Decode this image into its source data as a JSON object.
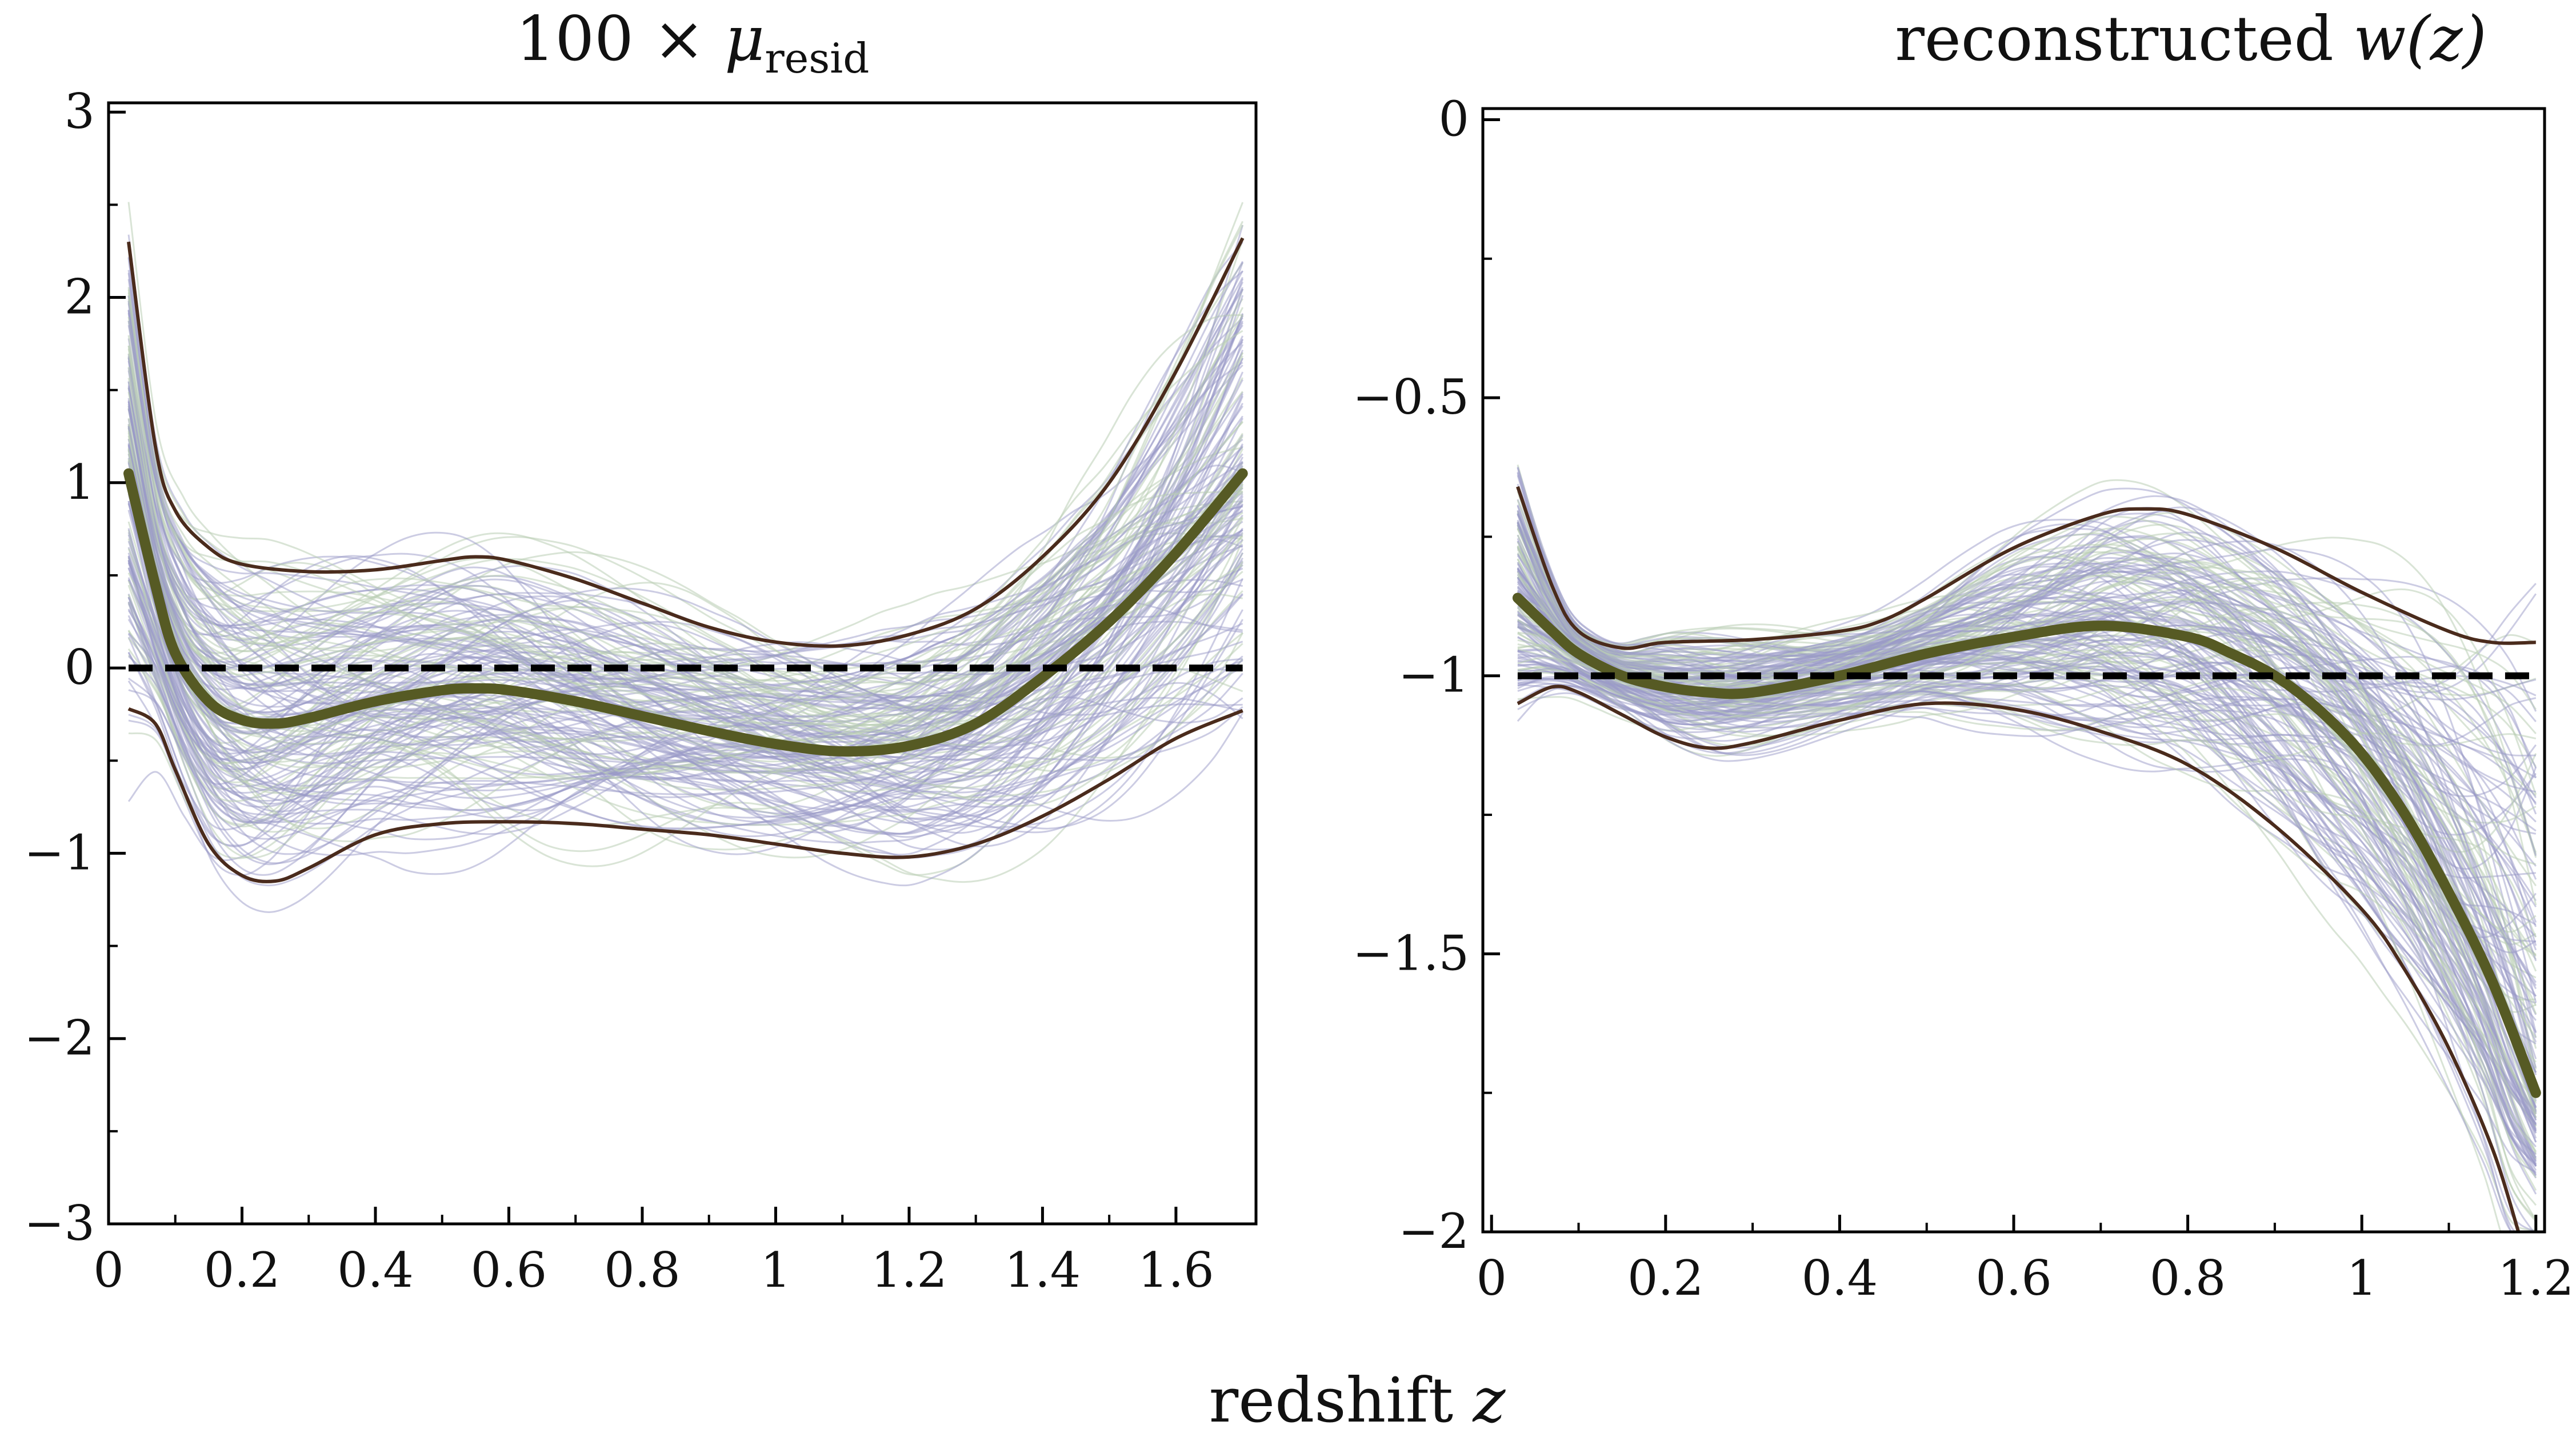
{
  "figure": {
    "xlabel_prefix": "redshift ",
    "xlabel_var": "z"
  },
  "colors": {
    "sample_purple": "#9a9ac8",
    "sample_green": "#b9cdb4",
    "mean": "#565a24",
    "band": "#4a2b1c",
    "reference": "#000000"
  },
  "chart_data": [
    {
      "type": "line",
      "title_prefix": "100 × ",
      "title_symbol": "μ",
      "title_subscript": "resid",
      "xlim": [
        0,
        1.72
      ],
      "ylim": [
        -3,
        3.05
      ],
      "x_ticks": [
        0,
        0.2,
        0.4,
        0.6,
        0.8,
        1,
        1.2,
        1.4,
        1.6
      ],
      "x_tick_labels": [
        "0",
        "0.2",
        "0.4",
        "0.6",
        "0.8",
        "1",
        "1.2",
        "1.4",
        "1.6"
      ],
      "y_ticks": [
        -3,
        -2,
        -1,
        0,
        1,
        2,
        3
      ],
      "y_tick_labels": [
        "−3",
        "−2",
        "−1",
        "0",
        "1",
        "2",
        "3"
      ],
      "grid": false,
      "legend": "none",
      "series": [
        {
          "role": "mean",
          "x": [
            0.03,
            0.07,
            0.1,
            0.15,
            0.2,
            0.25,
            0.3,
            0.4,
            0.5,
            0.55,
            0.6,
            0.7,
            0.8,
            0.9,
            1.0,
            1.1,
            1.2,
            1.3,
            1.4,
            1.5,
            1.6,
            1.7
          ],
          "y": [
            1.05,
            0.45,
            0.08,
            -0.18,
            -0.28,
            -0.3,
            -0.27,
            -0.18,
            -0.12,
            -0.11,
            -0.12,
            -0.18,
            -0.26,
            -0.34,
            -0.41,
            -0.45,
            -0.42,
            -0.3,
            -0.05,
            0.25,
            0.62,
            1.05
          ]
        },
        {
          "role": "upper",
          "x": [
            0.03,
            0.07,
            0.1,
            0.15,
            0.2,
            0.3,
            0.4,
            0.5,
            0.55,
            0.6,
            0.7,
            0.8,
            0.9,
            1.0,
            1.1,
            1.2,
            1.3,
            1.4,
            1.5,
            1.6,
            1.7
          ],
          "y": [
            2.3,
            1.2,
            0.85,
            0.65,
            0.56,
            0.52,
            0.53,
            0.58,
            0.6,
            0.58,
            0.48,
            0.35,
            0.22,
            0.14,
            0.12,
            0.18,
            0.32,
            0.6,
            1.0,
            1.6,
            2.32
          ]
        },
        {
          "role": "lower",
          "x": [
            0.03,
            0.07,
            0.1,
            0.15,
            0.2,
            0.25,
            0.3,
            0.4,
            0.5,
            0.6,
            0.7,
            0.8,
            0.9,
            1.0,
            1.1,
            1.2,
            1.3,
            1.4,
            1.5,
            1.6,
            1.7
          ],
          "y": [
            -0.22,
            -0.3,
            -0.55,
            -0.95,
            -1.12,
            -1.15,
            -1.08,
            -0.9,
            -0.84,
            -0.83,
            -0.84,
            -0.87,
            -0.9,
            -0.95,
            -1.0,
            -1.02,
            -0.95,
            -0.8,
            -0.6,
            -0.38,
            -0.23
          ]
        },
        {
          "role": "reference",
          "x": [
            0.03,
            1.7
          ],
          "y": [
            0,
            0
          ]
        }
      ]
    },
    {
      "type": "line",
      "title_prefix": "reconstructed ",
      "title_symbol": "w",
      "title_suffix": "(z)",
      "xlim": [
        -0.01,
        1.21
      ],
      "ylim": [
        -2,
        0.02
      ],
      "x_ticks": [
        0,
        0.2,
        0.4,
        0.6,
        0.8,
        1,
        1.2
      ],
      "x_tick_labels": [
        "0",
        "0.2",
        "0.4",
        "0.6",
        "0.8",
        "1",
        "1.2"
      ],
      "y_ticks": [
        -2,
        -1.5,
        -1,
        -0.5,
        0
      ],
      "y_tick_labels": [
        "−2",
        "−1.5",
        "−1",
        "−0.5",
        "0"
      ],
      "grid": false,
      "legend": "none",
      "series": [
        {
          "role": "mean",
          "x": [
            0.03,
            0.07,
            0.1,
            0.15,
            0.2,
            0.25,
            0.3,
            0.4,
            0.5,
            0.6,
            0.7,
            0.8,
            0.85,
            0.9,
            0.95,
            1.0,
            1.05,
            1.1,
            1.15,
            1.2
          ],
          "y": [
            -0.86,
            -0.92,
            -0.96,
            -1.0,
            -1.02,
            -1.03,
            -1.03,
            -1.0,
            -0.96,
            -0.93,
            -0.91,
            -0.93,
            -0.96,
            -1.0,
            -1.06,
            -1.14,
            -1.25,
            -1.39,
            -1.55,
            -1.75
          ]
        },
        {
          "role": "upper",
          "x": [
            0.03,
            0.07,
            0.1,
            0.15,
            0.2,
            0.3,
            0.4,
            0.45,
            0.5,
            0.6,
            0.7,
            0.75,
            0.8,
            0.9,
            1.0,
            1.1,
            1.15,
            1.2
          ],
          "y": [
            -0.66,
            -0.84,
            -0.92,
            -0.95,
            -0.94,
            -0.935,
            -0.92,
            -0.9,
            -0.86,
            -0.77,
            -0.71,
            -0.7,
            -0.71,
            -0.77,
            -0.85,
            -0.92,
            -0.94,
            -0.94
          ]
        },
        {
          "role": "lower",
          "x": [
            0.03,
            0.07,
            0.1,
            0.15,
            0.2,
            0.25,
            0.3,
            0.4,
            0.5,
            0.6,
            0.7,
            0.8,
            0.9,
            1.0,
            1.05,
            1.1,
            1.15,
            1.18
          ],
          "y": [
            -1.05,
            -1.02,
            -1.03,
            -1.07,
            -1.11,
            -1.13,
            -1.12,
            -1.08,
            -1.05,
            -1.06,
            -1.1,
            -1.16,
            -1.27,
            -1.42,
            -1.53,
            -1.67,
            -1.85,
            -2.0
          ]
        },
        {
          "role": "reference",
          "x": [
            0.03,
            1.2
          ],
          "y": [
            -1,
            -1
          ]
        }
      ]
    }
  ]
}
